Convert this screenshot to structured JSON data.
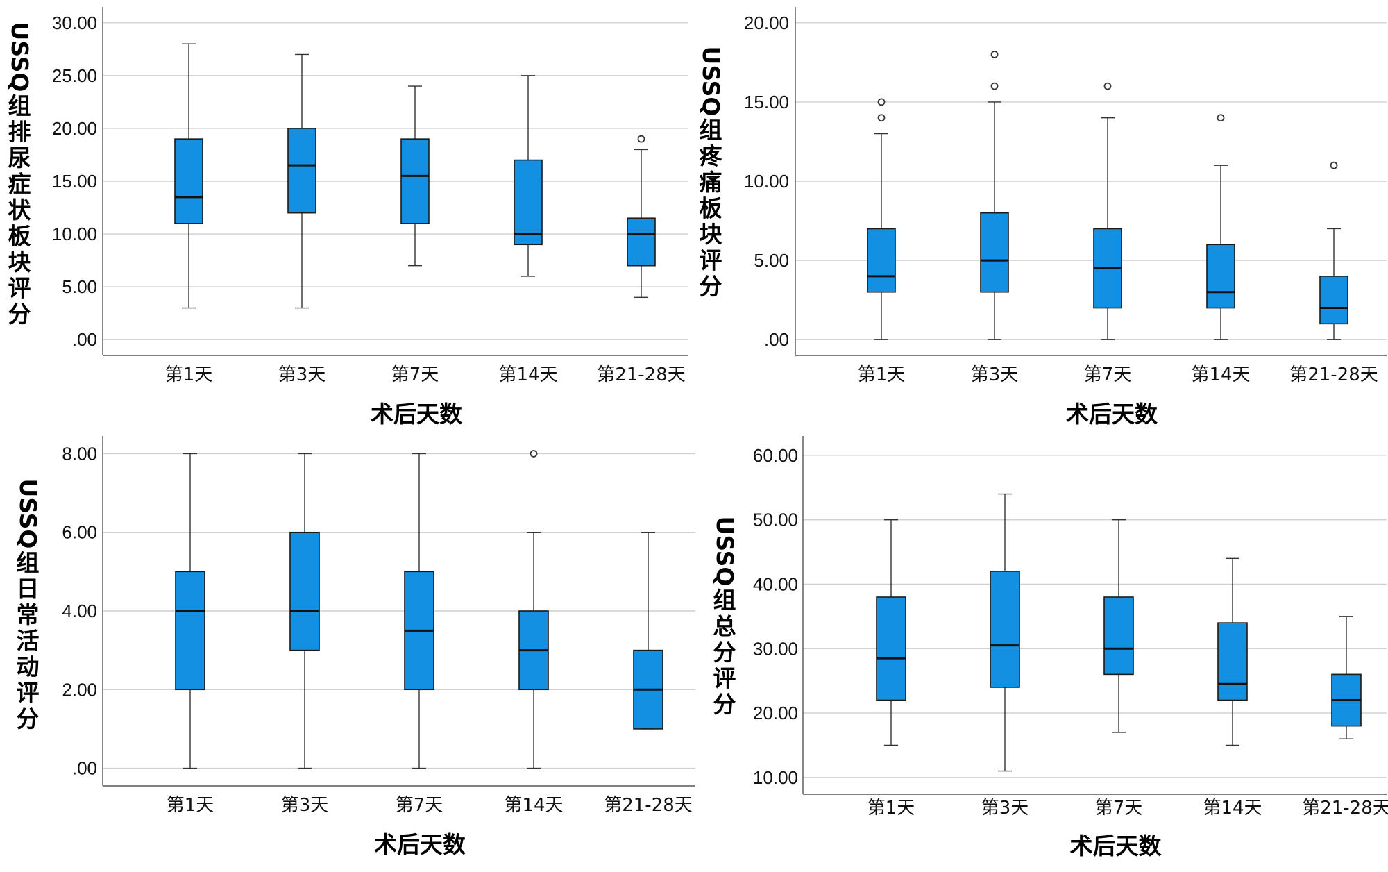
{
  "colors": {
    "box_fill": "#1490e3"
  },
  "chart_data": [
    {
      "type": "boxplot",
      "title": "",
      "xlabel": "术后天数",
      "ylabel": "USSQ组排尿症状板块评分",
      "ylim": [
        -1.5,
        31.5
      ],
      "yticks": [
        0,
        5,
        10,
        15,
        20,
        25,
        30
      ],
      "ytick_labels": [
        ".00",
        "5.00",
        "10.00",
        "15.00",
        "20.00",
        "25.00",
        "30.00"
      ],
      "categories": [
        "第1天",
        "第3天",
        "第7天",
        "第14天",
        "第21-28天"
      ],
      "boxes": [
        {
          "min": 3,
          "q1": 11,
          "median": 13.5,
          "q3": 19,
          "max": 28,
          "outliers": []
        },
        {
          "min": 3,
          "q1": 12,
          "median": 16.5,
          "q3": 20,
          "max": 27,
          "outliers": []
        },
        {
          "min": 7,
          "q1": 11,
          "median": 15.5,
          "q3": 19,
          "max": 24,
          "outliers": []
        },
        {
          "min": 6,
          "q1": 9,
          "median": 10,
          "q3": 17,
          "max": 25,
          "outliers": []
        },
        {
          "min": 4,
          "q1": 7,
          "median": 10,
          "q3": 11.5,
          "max": 18,
          "outliers": [
            19
          ]
        }
      ]
    },
    {
      "type": "boxplot",
      "title": "",
      "xlabel": "术后天数",
      "ylabel": "USSQ组疼痛板块评分",
      "ylim": [
        -1,
        21
      ],
      "yticks": [
        0,
        5,
        10,
        15,
        20
      ],
      "ytick_labels": [
        ".00",
        "5.00",
        "10.00",
        "15.00",
        "20.00"
      ],
      "categories": [
        "第1天",
        "第3天",
        "第7天",
        "第14天",
        "第21-28天"
      ],
      "boxes": [
        {
          "min": 0,
          "q1": 3,
          "median": 4,
          "q3": 7,
          "max": 13,
          "outliers": [
            14,
            15
          ]
        },
        {
          "min": 0,
          "q1": 3,
          "median": 5,
          "q3": 8,
          "max": 15,
          "outliers": [
            16,
            18
          ]
        },
        {
          "min": 0,
          "q1": 2,
          "median": 4.5,
          "q3": 7,
          "max": 14,
          "outliers": [
            16
          ]
        },
        {
          "min": 0,
          "q1": 2,
          "median": 3,
          "q3": 6,
          "max": 11,
          "outliers": [
            14
          ]
        },
        {
          "min": 0,
          "q1": 1,
          "median": 2,
          "q3": 4,
          "max": 7,
          "outliers": [
            11
          ]
        }
      ]
    },
    {
      "type": "boxplot",
      "title": "",
      "xlabel": "术后天数",
      "ylabel": "USSQ组日常活动评分",
      "ylim": [
        -0.45,
        8.45
      ],
      "yticks": [
        0,
        2,
        4,
        6,
        8
      ],
      "ytick_labels": [
        ".00",
        "2.00",
        "4.00",
        "6.00",
        "8.00"
      ],
      "categories": [
        "第1天",
        "第3天",
        "第7天",
        "第14天",
        "第21-28天"
      ],
      "boxes": [
        {
          "min": 0,
          "q1": 2,
          "median": 4,
          "q3": 5,
          "max": 8,
          "outliers": []
        },
        {
          "min": 0,
          "q1": 3,
          "median": 4,
          "q3": 6,
          "max": 8,
          "outliers": []
        },
        {
          "min": 0,
          "q1": 2,
          "median": 3.5,
          "q3": 5,
          "max": 8,
          "outliers": []
        },
        {
          "min": 0,
          "q1": 2,
          "median": 3,
          "q3": 4,
          "max": 6,
          "outliers": [
            8
          ]
        },
        {
          "min": 1,
          "q1": 1,
          "median": 2,
          "q3": 3,
          "max": 6,
          "outliers": []
        }
      ]
    },
    {
      "type": "boxplot",
      "title": "",
      "xlabel": "术后天数",
      "ylabel": "USSQ组总分评分",
      "ylim": [
        7.4,
        63
      ],
      "yticks": [
        10,
        20,
        30,
        40,
        50,
        60
      ],
      "ytick_labels": [
        "10.00",
        "20.00",
        "30.00",
        "40.00",
        "50.00",
        "60.00"
      ],
      "categories": [
        "第1天",
        "第3天",
        "第7天",
        "第14天",
        "第21-28天"
      ],
      "boxes": [
        {
          "min": 15,
          "q1": 22,
          "median": 28.5,
          "q3": 38,
          "max": 50,
          "outliers": []
        },
        {
          "min": 11,
          "q1": 24,
          "median": 30.5,
          "q3": 42,
          "max": 54,
          "outliers": []
        },
        {
          "min": 17,
          "q1": 26,
          "median": 30,
          "q3": 38,
          "max": 50,
          "outliers": []
        },
        {
          "min": 15,
          "q1": 22,
          "median": 24.5,
          "q3": 34,
          "max": 44,
          "outliers": []
        },
        {
          "min": 16,
          "q1": 18,
          "median": 22,
          "q3": 26,
          "max": 35,
          "outliers": []
        }
      ]
    }
  ]
}
